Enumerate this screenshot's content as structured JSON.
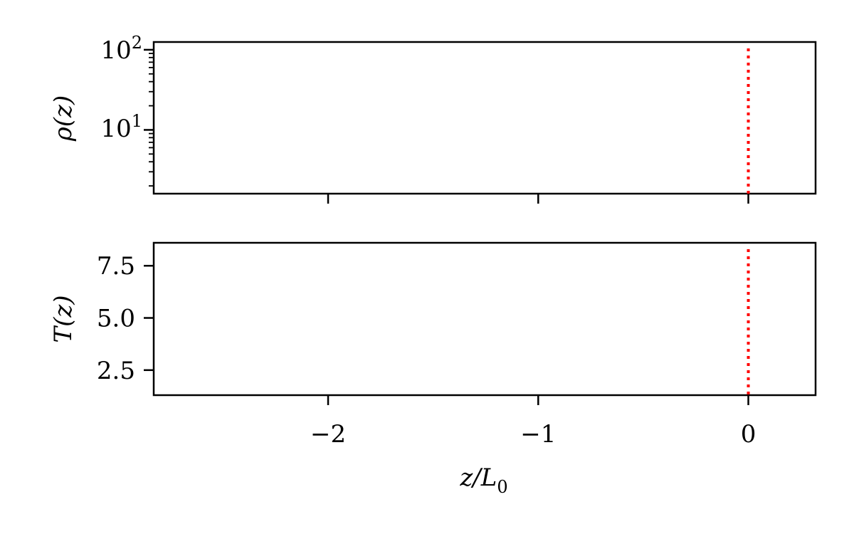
{
  "chart_data": [
    {
      "type": "line",
      "title": "",
      "xlabel": "",
      "ylabel": "ρ(z)",
      "yscale": "log",
      "xlim": [
        -2.83,
        0.32
      ],
      "ylim": [
        1.6,
        125
      ],
      "xticks": [
        -2,
        -1,
        0
      ],
      "xtick_labels_shown": false,
      "yticks": [
        {
          "value": 10,
          "base": "10",
          "exp": "1"
        },
        {
          "value": 100,
          "base": "10",
          "exp": "2"
        }
      ],
      "grid": false,
      "series": [],
      "annotations": [
        {
          "kind": "vline",
          "x": 0,
          "style": "dotted",
          "color": "#ff0000"
        }
      ]
    },
    {
      "type": "line",
      "title": "",
      "xlabel": "z/L0",
      "ylabel": "T(z)",
      "yscale": "linear",
      "xlim": [
        -2.83,
        0.32
      ],
      "ylim": [
        1.3,
        8.6
      ],
      "xticks": [
        {
          "value": -2,
          "label": "−2"
        },
        {
          "value": -1,
          "label": "−1"
        },
        {
          "value": 0,
          "label": "0"
        }
      ],
      "yticks": [
        {
          "value": 2.5,
          "label": "2.5"
        },
        {
          "value": 5.0,
          "label": "5.0"
        },
        {
          "value": 7.5,
          "label": "7.5"
        }
      ],
      "grid": false,
      "series": [],
      "annotations": [
        {
          "kind": "vline",
          "x": 0,
          "style": "dotted",
          "color": "#ff0000"
        }
      ]
    }
  ],
  "labels": {
    "top_ylabel_symbol": "ρ(z)",
    "bottom_ylabel": "T(z)",
    "xlabel_main": "z/L",
    "xlabel_sub": "0"
  },
  "colors": {
    "axes": "#000000",
    "vline": "#ff0000"
  }
}
